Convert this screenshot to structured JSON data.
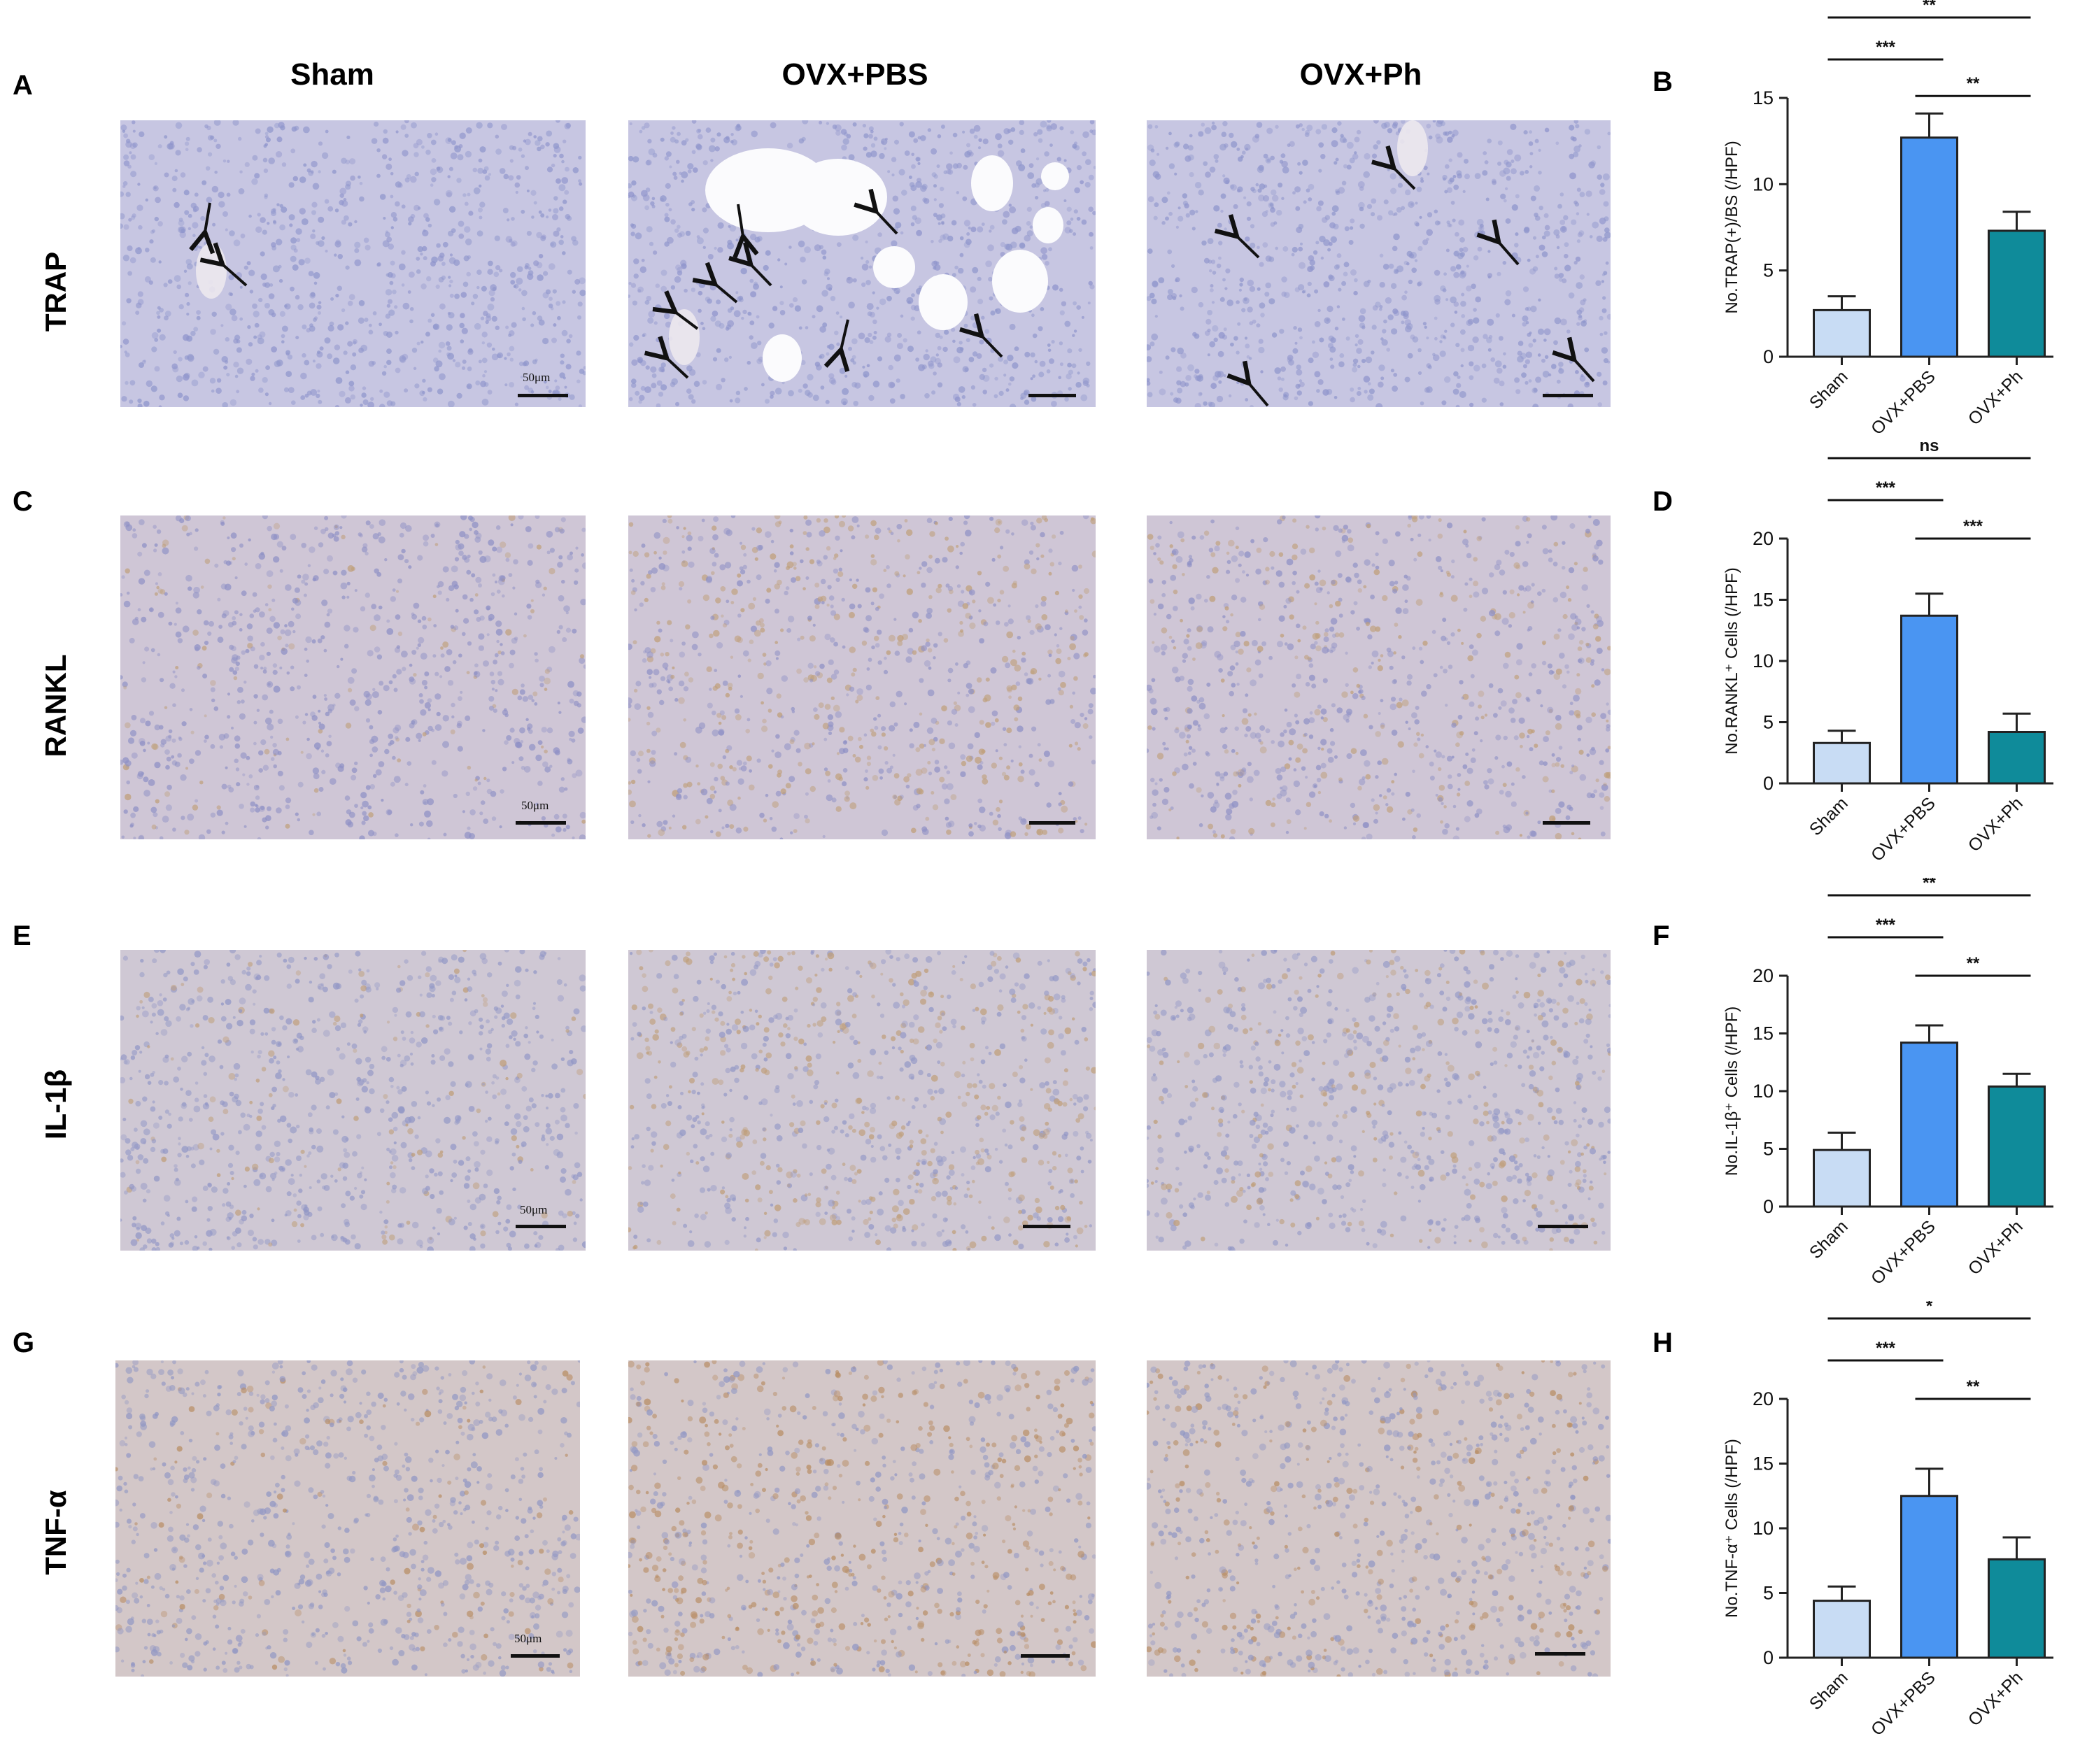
{
  "columns": [
    "Sham",
    "OVX+PBS",
    "OVX+Ph"
  ],
  "rows": [
    {
      "letter": "A",
      "label": "TRAP",
      "tint": "#c7c6e2",
      "dot": "#8f95cc",
      "brown": "#b98f96"
    },
    {
      "letter": "C",
      "label": "RANKL",
      "tint": "#cfc6d6",
      "dot": "#8e90c5",
      "brown": "#bf9f7a"
    },
    {
      "letter": "E",
      "label": "IL-1β",
      "tint": "#cfc8d4",
      "dot": "#9297c6",
      "brown": "#bf9e79"
    },
    {
      "letter": "G",
      "label": "TNF-α",
      "tint": "#d3c7c8",
      "dot": "#9197c4",
      "brown": "#b88d64"
    }
  ],
  "scale_label": "50μm",
  "colors": {
    "sham": "#c8dcf4",
    "ovx_pbs": "#4a95f2",
    "ovx_ph": "#0f8b9a"
  },
  "chart_data": [
    {
      "letter": "B",
      "type": "bar",
      "ylabel": "No.TRAP(+)/BS (/HPF)",
      "categories": [
        "Sham",
        "OVX+PBS",
        "OVX+Ph"
      ],
      "values": [
        2.7,
        12.7,
        7.3
      ],
      "errors": [
        0.8,
        1.4,
        1.1
      ],
      "ylim": [
        0,
        15
      ],
      "yticks": [
        "0",
        "5",
        "10",
        "15"
      ],
      "sig": [
        {
          "a": 0,
          "b": 1,
          "text": "***",
          "level": 1
        },
        {
          "a": 1,
          "b": 2,
          "text": "**",
          "level": 0
        },
        {
          "a": 0,
          "b": 2,
          "text": "**",
          "level": 2
        }
      ]
    },
    {
      "letter": "D",
      "type": "bar",
      "ylabel": "No.RANKL⁺ Cells (/HPF)",
      "categories": [
        "Sham",
        "OVX+PBS",
        "OVX+Ph"
      ],
      "values": [
        3.3,
        13.7,
        4.2
      ],
      "errors": [
        1.0,
        1.8,
        1.5
      ],
      "ylim": [
        0,
        20
      ],
      "yticks": [
        "0",
        "5",
        "10",
        "15",
        "20"
      ],
      "sig": [
        {
          "a": 0,
          "b": 1,
          "text": "***",
          "level": 1
        },
        {
          "a": 1,
          "b": 2,
          "text": "***",
          "level": 0
        },
        {
          "a": 0,
          "b": 2,
          "text": "ns",
          "level": 2
        }
      ]
    },
    {
      "letter": "F",
      "type": "bar",
      "ylabel": "No.IL-1β⁺ Cells (/HPF)",
      "categories": [
        "Sham",
        "OVX+PBS",
        "OVX+Ph"
      ],
      "values": [
        4.9,
        14.2,
        10.4
      ],
      "errors": [
        1.5,
        1.5,
        1.1
      ],
      "ylim": [
        0,
        20
      ],
      "yticks": [
        "0",
        "5",
        "10",
        "15",
        "20"
      ],
      "sig": [
        {
          "a": 0,
          "b": 1,
          "text": "***",
          "level": 1
        },
        {
          "a": 1,
          "b": 2,
          "text": "**",
          "level": 0
        },
        {
          "a": 0,
          "b": 2,
          "text": "**",
          "level": 2
        }
      ]
    },
    {
      "letter": "H",
      "type": "bar",
      "ylabel": "No.TNF-α⁺ Cells (/HPF)",
      "categories": [
        "Sham",
        "OVX+PBS",
        "OVX+Ph"
      ],
      "values": [
        4.4,
        12.5,
        7.6
      ],
      "errors": [
        1.1,
        2.1,
        1.7
      ],
      "ylim": [
        0,
        20
      ],
      "yticks": [
        "0",
        "5",
        "10",
        "15",
        "20"
      ],
      "sig": [
        {
          "a": 0,
          "b": 1,
          "text": "***",
          "level": 1
        },
        {
          "a": 1,
          "b": 2,
          "text": "**",
          "level": 0
        },
        {
          "a": 0,
          "b": 2,
          "text": "*",
          "level": 2
        }
      ]
    }
  ]
}
